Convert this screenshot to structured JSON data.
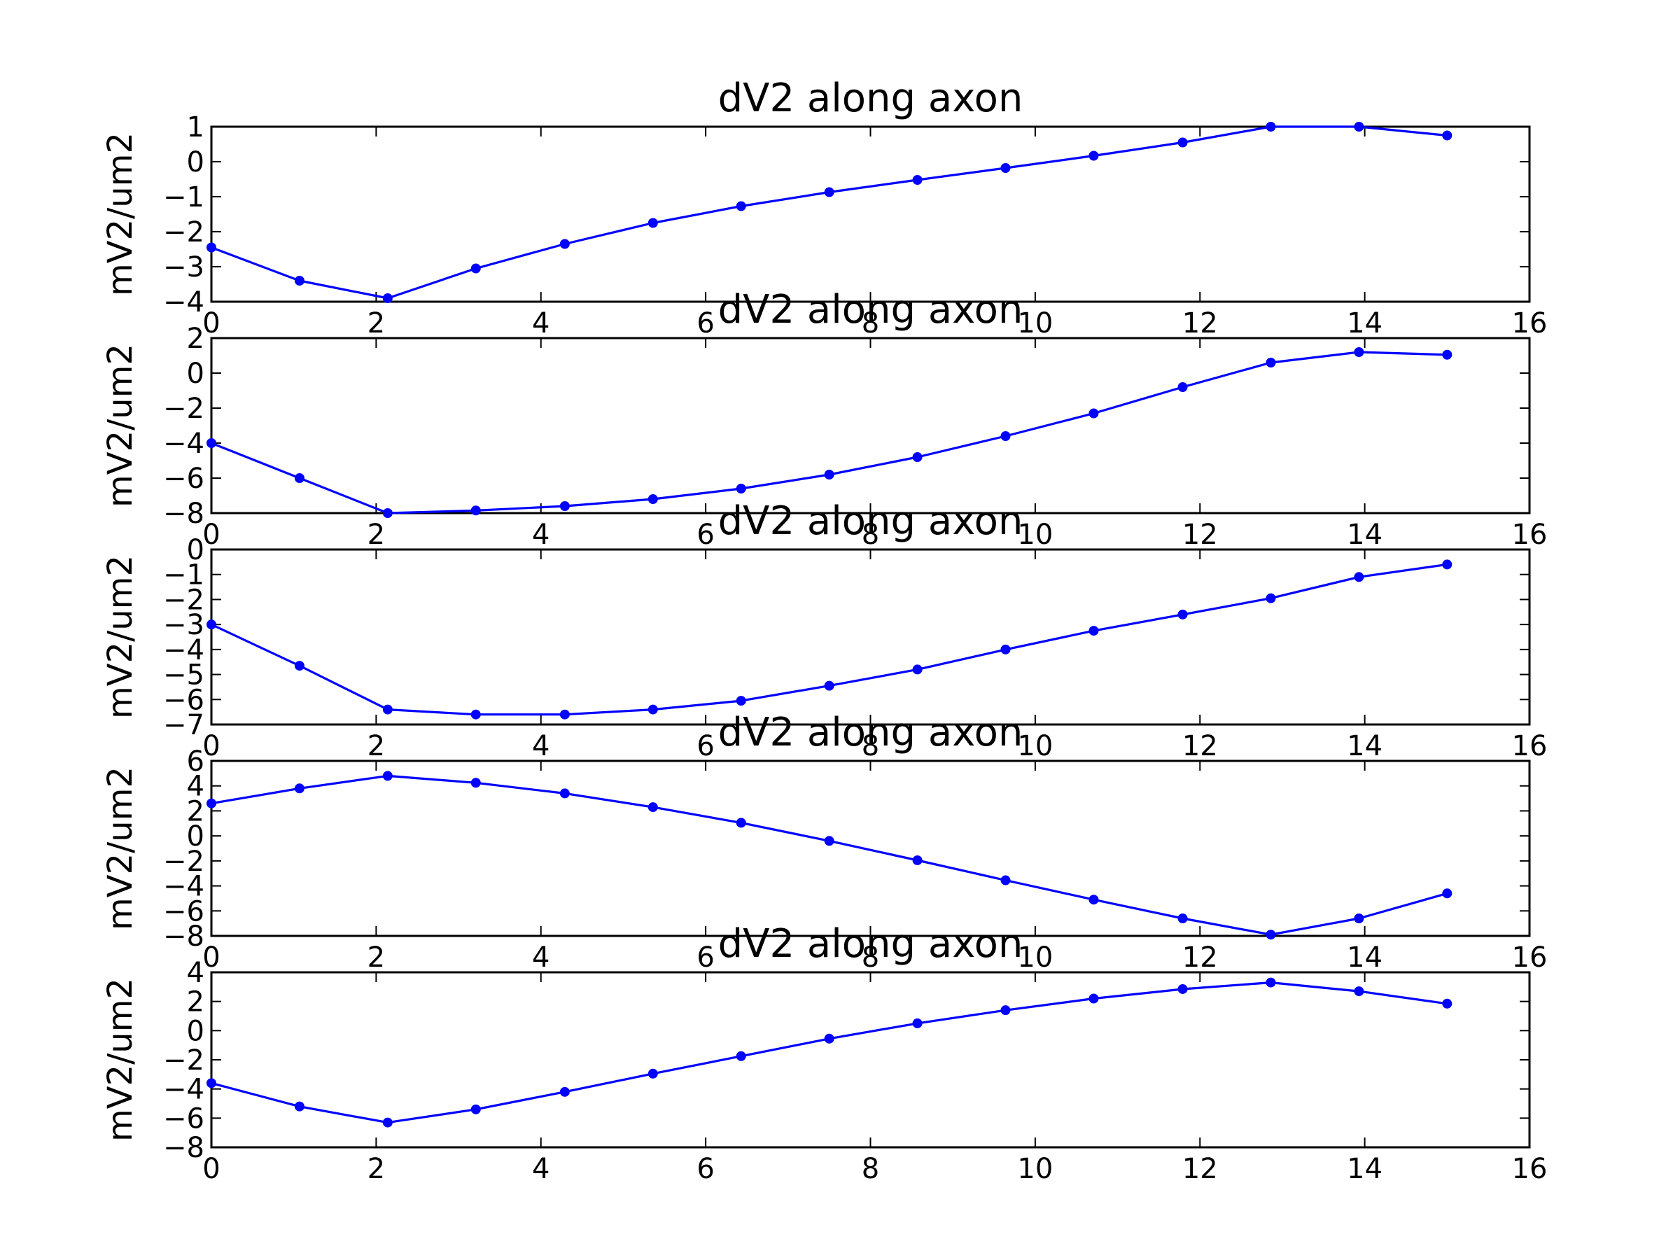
{
  "chart_data": [
    {
      "type": "line",
      "title": "dV2 along axon",
      "xlabel": "",
      "ylabel": "mV2/um2",
      "xlim": [
        0,
        16
      ],
      "ylim": [
        -4,
        1
      ],
      "xticks": [
        "0",
        "2",
        "4",
        "6",
        "8",
        "10",
        "12",
        "14",
        "16"
      ],
      "yticks": [
        "1",
        "0",
        "−1",
        "−2",
        "−3",
        "−4"
      ],
      "grid": false,
      "x": [
        0,
        1.07,
        2.14,
        3.21,
        4.29,
        5.36,
        6.43,
        7.5,
        8.57,
        9.64,
        10.71,
        11.79,
        12.86,
        13.93,
        15.0
      ],
      "series": [
        {
          "values": [
            -2.45,
            -3.4,
            -3.9,
            -3.05,
            -2.35,
            -1.75,
            -1.27,
            -0.87,
            -0.52,
            -0.18,
            0.17,
            0.55,
            1.0,
            1.0,
            0.75
          ]
        }
      ]
    },
    {
      "type": "line",
      "title": "dV2 along axon",
      "xlabel": "",
      "ylabel": "mV2/um2",
      "xlim": [
        0,
        16
      ],
      "ylim": [
        -8,
        2
      ],
      "xticks": [
        "0",
        "2",
        "4",
        "6",
        "8",
        "10",
        "12",
        "14",
        "16"
      ],
      "yticks": [
        "2",
        "0",
        "−2",
        "−4",
        "−6",
        "−8"
      ],
      "grid": false,
      "x": [
        0,
        1.07,
        2.14,
        3.21,
        4.29,
        5.36,
        6.43,
        7.5,
        8.57,
        9.64,
        10.71,
        11.79,
        12.86,
        13.93,
        15.0
      ],
      "series": [
        {
          "values": [
            -4.0,
            -6.0,
            -8.0,
            -7.85,
            -7.6,
            -7.2,
            -6.6,
            -5.8,
            -4.8,
            -3.6,
            -2.3,
            -0.8,
            0.6,
            1.2,
            1.05
          ]
        }
      ]
    },
    {
      "type": "line",
      "title": "dV2 along axon",
      "xlabel": "",
      "ylabel": "mV2/um2",
      "xlim": [
        0,
        16
      ],
      "ylim": [
        -7,
        0
      ],
      "xticks": [
        "0",
        "2",
        "4",
        "6",
        "8",
        "10",
        "12",
        "14",
        "16"
      ],
      "yticks": [
        "0",
        "−1",
        "−2",
        "−3",
        "−4",
        "−5",
        "−6",
        "−7"
      ],
      "grid": false,
      "x": [
        0,
        1.07,
        2.14,
        3.21,
        4.29,
        5.36,
        6.43,
        7.5,
        8.57,
        9.64,
        10.71,
        11.79,
        12.86,
        13.93,
        15.0
      ],
      "series": [
        {
          "values": [
            -3.0,
            -4.65,
            -6.4,
            -6.6,
            -6.6,
            -6.4,
            -6.05,
            -5.45,
            -4.8,
            -4.0,
            -3.25,
            -2.6,
            -1.95,
            -1.1,
            -0.6
          ]
        }
      ]
    },
    {
      "type": "line",
      "title": "dV2 along axon",
      "xlabel": "",
      "ylabel": "mV2/um2",
      "xlim": [
        0,
        16
      ],
      "ylim": [
        -8,
        6
      ],
      "xticks": [
        "0",
        "2",
        "4",
        "6",
        "8",
        "10",
        "12",
        "14",
        "16"
      ],
      "yticks": [
        "6",
        "4",
        "2",
        "0",
        "−2",
        "−4",
        "−6",
        "−8"
      ],
      "grid": false,
      "x": [
        0,
        1.07,
        2.14,
        3.21,
        4.29,
        5.36,
        6.43,
        7.5,
        8.57,
        9.64,
        10.71,
        11.79,
        12.86,
        13.93,
        15.0
      ],
      "series": [
        {
          "values": [
            2.6,
            3.8,
            4.8,
            4.25,
            3.4,
            2.3,
            1.05,
            -0.4,
            -1.95,
            -3.55,
            -5.1,
            -6.6,
            -7.9,
            -6.6,
            -4.6
          ]
        }
      ]
    },
    {
      "type": "line",
      "title": "dV2 along axon",
      "xlabel": "",
      "ylabel": "mV2/um2",
      "xlim": [
        0,
        16
      ],
      "ylim": [
        -8,
        4
      ],
      "xticks": [
        "0",
        "2",
        "4",
        "6",
        "8",
        "10",
        "12",
        "14",
        "16"
      ],
      "yticks": [
        "4",
        "2",
        "0",
        "−2",
        "−4",
        "−6",
        "−8"
      ],
      "grid": false,
      "x": [
        0,
        1.07,
        2.14,
        3.21,
        4.29,
        5.36,
        6.43,
        7.5,
        8.57,
        9.64,
        10.71,
        11.79,
        12.86,
        13.93,
        15.0
      ],
      "series": [
        {
          "values": [
            -3.6,
            -5.2,
            -6.3,
            -5.4,
            -4.2,
            -2.95,
            -1.75,
            -0.55,
            0.5,
            1.4,
            2.2,
            2.85,
            3.3,
            2.7,
            1.85
          ]
        }
      ]
    }
  ]
}
